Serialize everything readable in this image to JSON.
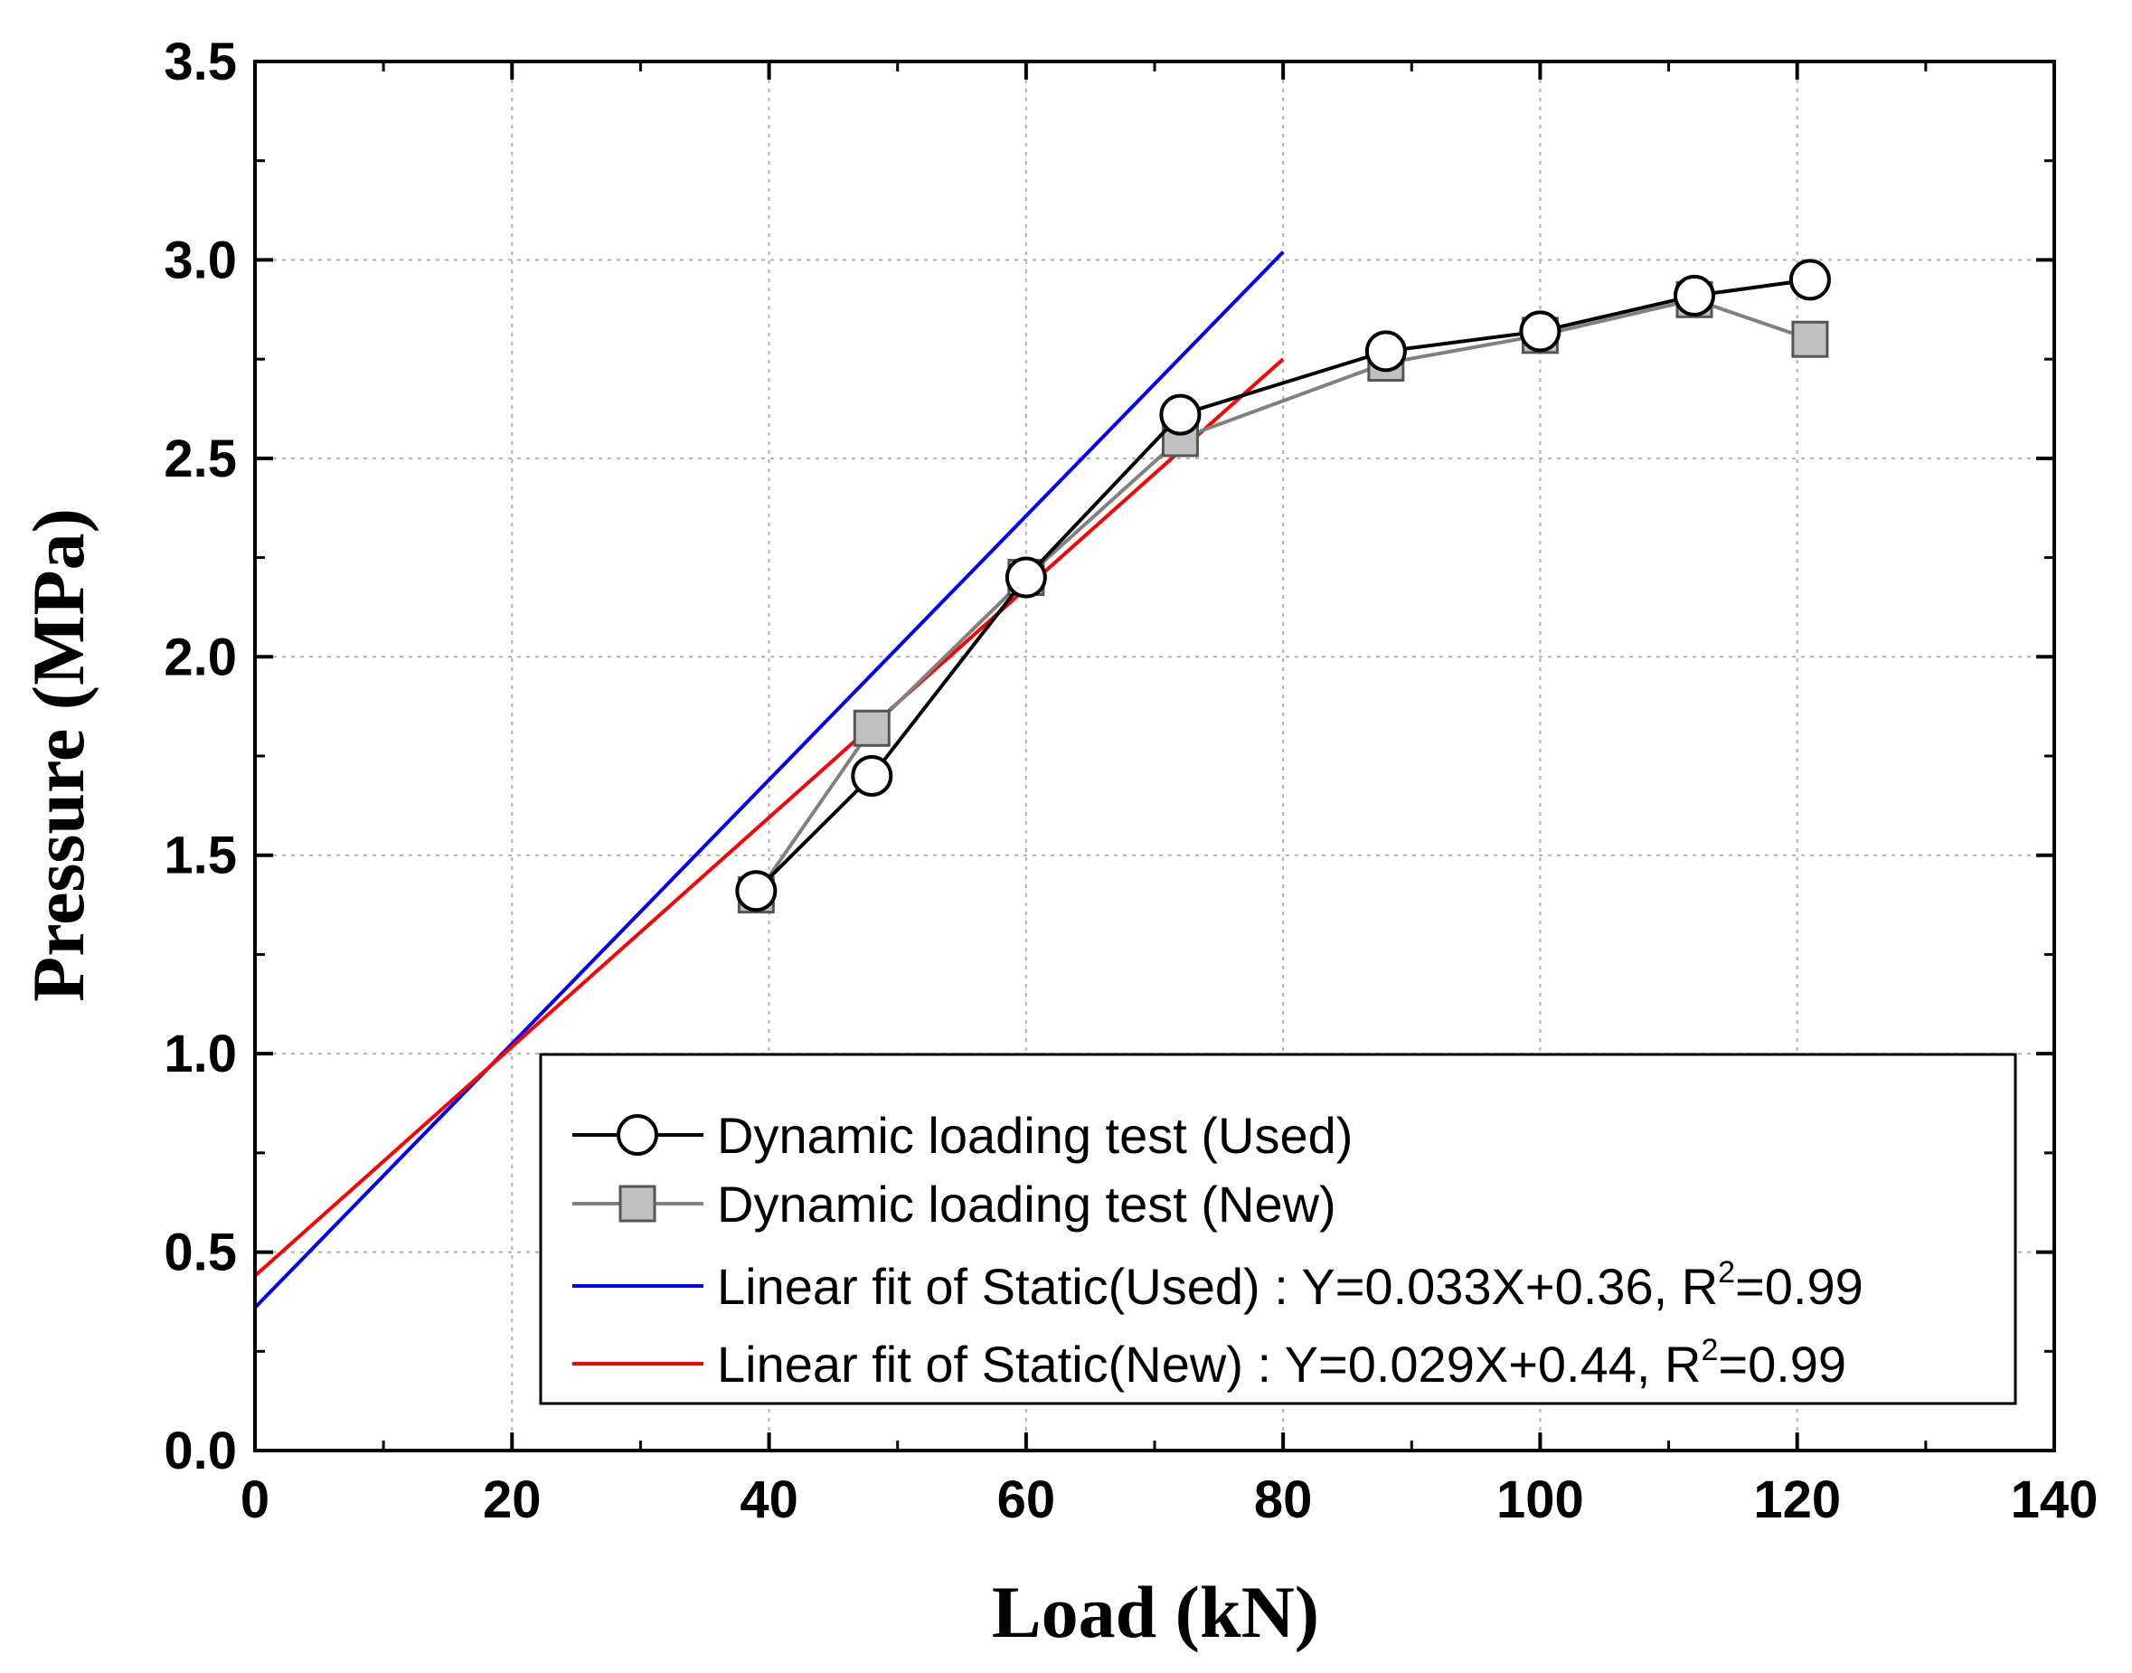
{
  "chart_data": {
    "type": "line",
    "title": "",
    "xlabel": "Load (kN)",
    "ylabel": "Pressure (MPa)",
    "xlim": [
      0,
      140
    ],
    "ylim": [
      0,
      3.5
    ],
    "x_ticks": [
      "0",
      "20",
      "40",
      "60",
      "80",
      "100",
      "120",
      "140"
    ],
    "y_ticks": [
      "0.0",
      "0.5",
      "1.0",
      "1.5",
      "2.0",
      "2.5",
      "3.0",
      "3.5"
    ],
    "grid": true,
    "legend_position": "bottom-right",
    "series": [
      {
        "name": "Dynamic loading test (Used)",
        "marker": "circle",
        "color": "#000000",
        "marker_fill": "#ffffff",
        "x": [
          39,
          48,
          60,
          72,
          88,
          100,
          112,
          121
        ],
        "y": [
          1.41,
          1.7,
          2.2,
          2.61,
          2.77,
          2.82,
          2.91,
          2.95
        ]
      },
      {
        "name": "Dynamic loading test (New)",
        "marker": "square",
        "color": "#808080",
        "marker_fill": "#c0c0c0",
        "x": [
          39,
          48,
          60,
          72,
          88,
          100,
          112,
          121
        ],
        "y": [
          1.4,
          1.82,
          2.2,
          2.55,
          2.74,
          2.81,
          2.9,
          2.8
        ]
      },
      {
        "name": "Linear fit of Static(Used) : Y=0.033X+0.36, R",
        "name_sup": "2",
        "name_tail": "=0.99",
        "marker": "none",
        "color": "#0000ff",
        "x": [
          0,
          80
        ],
        "y": [
          0.36,
          3.02
        ]
      },
      {
        "name": "Linear fit of Static(New) : Y=0.029X+0.44, R",
        "name_sup": "2",
        "name_tail": "=0.99",
        "marker": "none",
        "color": "#ff0000",
        "x": [
          0,
          80
        ],
        "y": [
          0.44,
          2.75
        ]
      }
    ]
  }
}
